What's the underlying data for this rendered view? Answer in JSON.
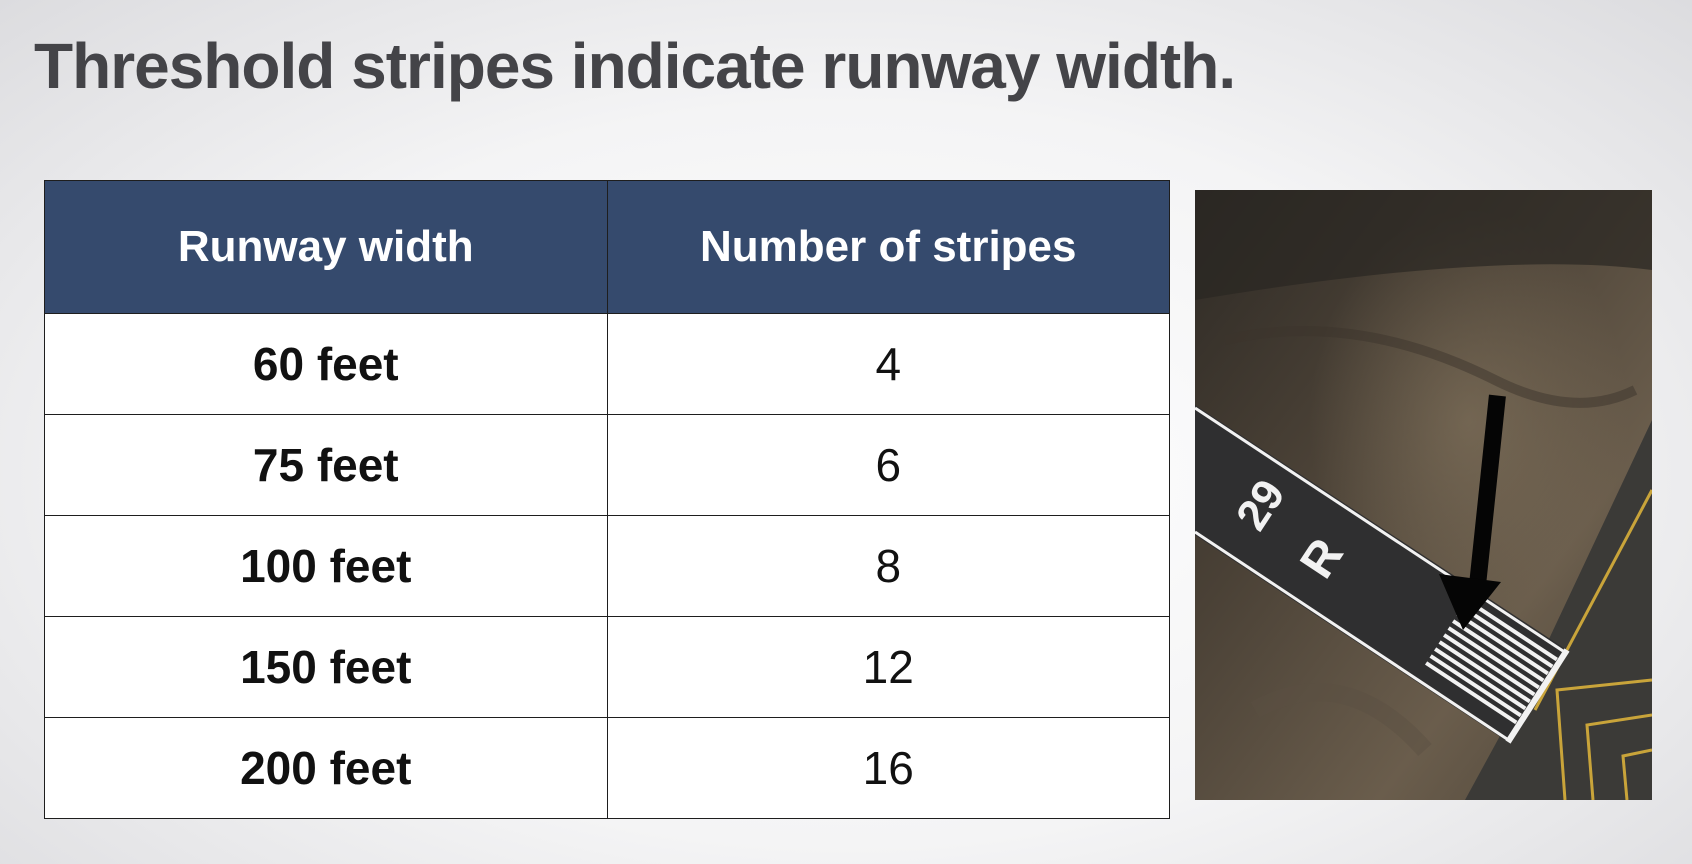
{
  "slide": {
    "title": "Threshold stripes indicate runway width."
  },
  "table": {
    "headers": [
      "Runway width",
      "Number of stripes"
    ],
    "rows": [
      {
        "width": "60 feet",
        "stripes": "4"
      },
      {
        "width": "75 feet",
        "stripes": "6"
      },
      {
        "width": "100 feet",
        "stripes": "8"
      },
      {
        "width": "150 feet",
        "stripes": "12"
      },
      {
        "width": "200 feet",
        "stripes": "16"
      }
    ]
  },
  "photo": {
    "runway_number": "29",
    "runway_designator": "R",
    "colors": {
      "terrain": "#4a4136",
      "runway": "#2f2f30",
      "paint": "#f2f2f2",
      "taxiway_line": "#c9a43a",
      "arrow": "#050505"
    }
  }
}
